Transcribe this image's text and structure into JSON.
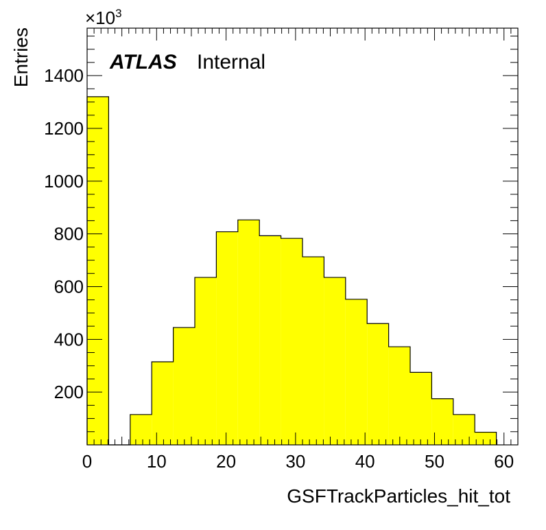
{
  "chart_data": {
    "type": "bar",
    "histogram": true,
    "xlabel": "GSFTrackParticles_hit_tot",
    "ylabel": "Entries",
    "y_multiplier_label": "×10",
    "y_multiplier_exponent": "3",
    "label_atlas": "ATLAS",
    "label_status": "Internal",
    "xlim": [
      0,
      62
    ],
    "ylim": [
      0,
      1580
    ],
    "x_ticks": [
      0,
      10,
      20,
      30,
      40,
      50,
      60
    ],
    "y_ticks": [
      200,
      400,
      600,
      800,
      1000,
      1200,
      1400
    ],
    "bin_edges": [
      0,
      3.1,
      6.2,
      9.3,
      12.4,
      15.5,
      18.6,
      21.7,
      24.8,
      27.9,
      31.0,
      34.1,
      37.2,
      40.3,
      43.4,
      46.5,
      49.6,
      52.7,
      55.8,
      58.9
    ],
    "values": [
      1320,
      0,
      115,
      315,
      445,
      635,
      808,
      853,
      793,
      783,
      713,
      635,
      552,
      460,
      372,
      275,
      175,
      115,
      48
    ],
    "fill_color": "#ffff00",
    "line_color": "#000000",
    "grid": false
  }
}
